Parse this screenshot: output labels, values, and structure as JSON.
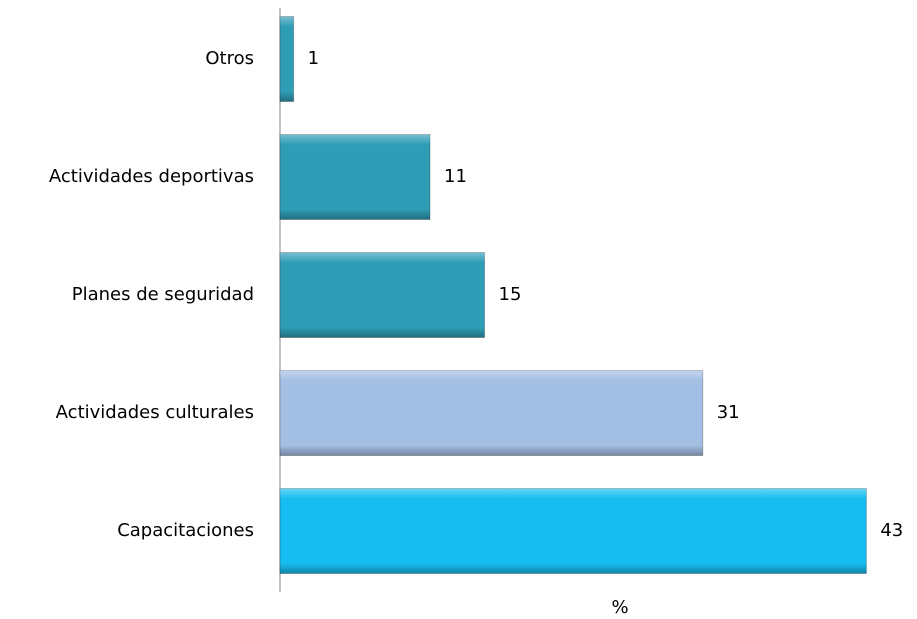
{
  "chart_data": {
    "type": "hbar",
    "categories": [
      "Otros",
      "Actividades deportivas",
      "Planes de seguridad",
      "Actividades culturales",
      "Capacitaciones"
    ],
    "values": [
      1,
      11,
      15,
      31,
      43
    ],
    "colors": [
      "#2f9db6",
      "#2f9db6",
      "#2f9db6",
      "#a3bfe4",
      "#17bdf0"
    ],
    "x_label": "%",
    "xlim": [
      0,
      44
    ]
  }
}
